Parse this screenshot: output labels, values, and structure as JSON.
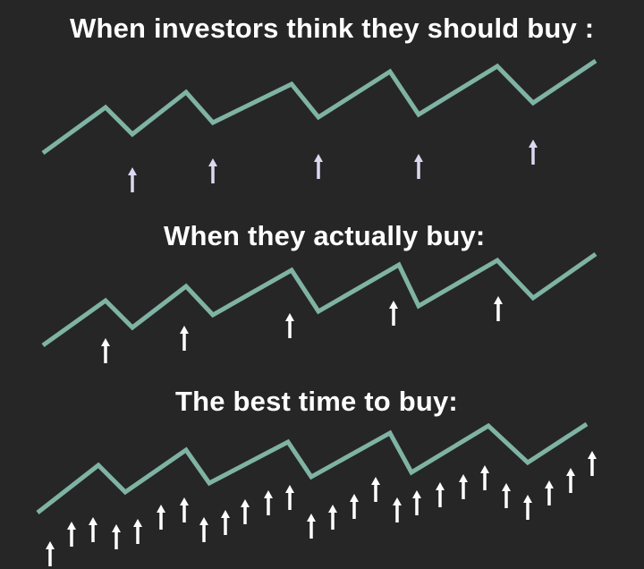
{
  "panels": [
    {
      "title": "When investors think they should buy :"
    },
    {
      "title": "When they actually buy:"
    },
    {
      "title": "The best time to buy:"
    }
  ],
  "colors": {
    "background": "#262626",
    "line": "#7fb3a3",
    "arrow_panel1": "#ddd8f2",
    "arrow_other": "#ffffff",
    "text": "#ffffff"
  },
  "icons": {
    "arrow": "up-arrow-icon"
  }
}
